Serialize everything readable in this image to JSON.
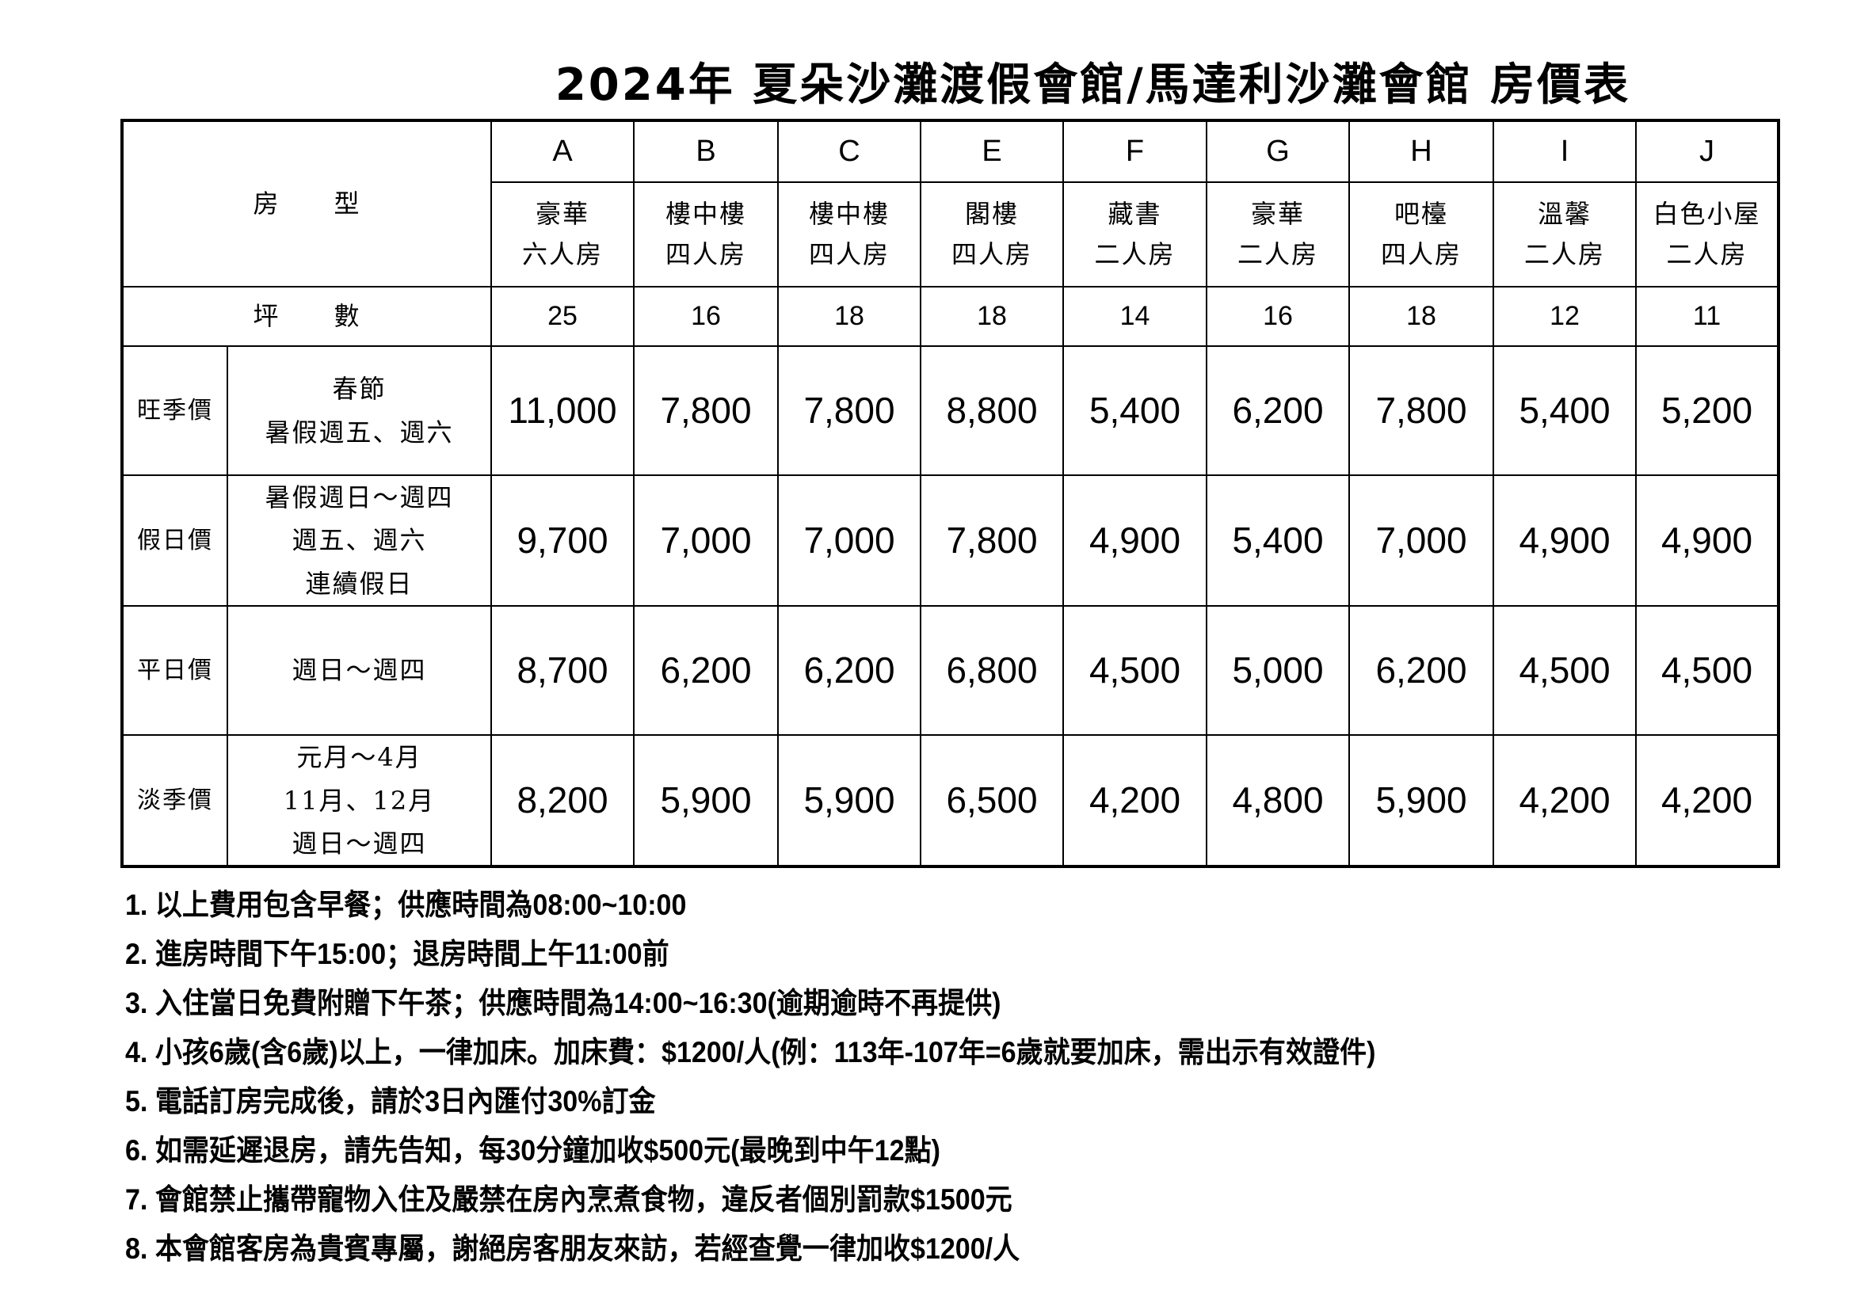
{
  "title": "2024年 夏朵沙灘渡假會館/馬達利沙灘會館 房價表",
  "table": {
    "room_type_label": "房　　型",
    "area_label": "坪　　數",
    "columns": [
      {
        "code": "A",
        "name_line1": "豪華",
        "name_line2": "六人房",
        "area": "25"
      },
      {
        "code": "B",
        "name_line1": "樓中樓",
        "name_line2": "四人房",
        "area": "16"
      },
      {
        "code": "C",
        "name_line1": "樓中樓",
        "name_line2": "四人房",
        "area": "18"
      },
      {
        "code": "E",
        "name_line1": "閣樓",
        "name_line2": "四人房",
        "area": "18"
      },
      {
        "code": "F",
        "name_line1": "藏書",
        "name_line2": "二人房",
        "area": "14"
      },
      {
        "code": "G",
        "name_line1": "豪華",
        "name_line2": "二人房",
        "area": "16"
      },
      {
        "code": "H",
        "name_line1": "吧檯",
        "name_line2": "四人房",
        "area": "18"
      },
      {
        "code": "I",
        "name_line1": "溫馨",
        "name_line2": "二人房",
        "area": "12"
      },
      {
        "code": "J",
        "name_line1": "白色小屋",
        "name_line2": "二人房",
        "area": "11"
      }
    ],
    "rows": [
      {
        "label": "旺季價",
        "period": [
          "春節",
          "暑假週五、週六"
        ],
        "prices": [
          "11,000",
          "7,800",
          "7,800",
          "8,800",
          "5,400",
          "6,200",
          "7,800",
          "5,400",
          "5,200"
        ]
      },
      {
        "label": "假日價",
        "period": [
          "暑假週日～週四",
          "週五、週六",
          "連續假日"
        ],
        "prices": [
          "9,700",
          "7,000",
          "7,000",
          "7,800",
          "4,900",
          "5,400",
          "7,000",
          "4,900",
          "4,900"
        ]
      },
      {
        "label": "平日價",
        "period": [
          "週日～週四"
        ],
        "prices": [
          "8,700",
          "6,200",
          "6,200",
          "6,800",
          "4,500",
          "5,000",
          "6,200",
          "4,500",
          "4,500"
        ]
      },
      {
        "label": "淡季價",
        "period": [
          "元月～4月",
          "11月、12月",
          "週日～週四"
        ],
        "prices": [
          "8,200",
          "5,900",
          "5,900",
          "6,500",
          "4,200",
          "4,800",
          "5,900",
          "4,200",
          "4,200"
        ]
      }
    ]
  },
  "notes": [
    "1. 以上費用包含早餐；供應時間為08:00~10:00",
    "2. 進房時間下午15:00；退房時間上午11:00前",
    "3. 入住當日免費附贈下午茶；供應時間為14:00~16:30(逾期逾時不再提供)",
    "4. 小孩6歲(含6歲)以上，一律加床。加床費：$1200/人(例：113年-107年=6歲就要加床，需出示有效證件)",
    "5. 電話訂房完成後，請於3日內匯付30%訂金",
    "6. 如需延遲退房，請先告知，每30分鐘加收$500元(最晚到中午12點)",
    "7. 會館禁止攜帶寵物入住及嚴禁在房內烹煮食物，違反者個別罰款$1500元",
    "8. 本會館客房為貴賓專屬，謝絕房客朋友來訪，若經查覺一律加收$1200/人"
  ]
}
